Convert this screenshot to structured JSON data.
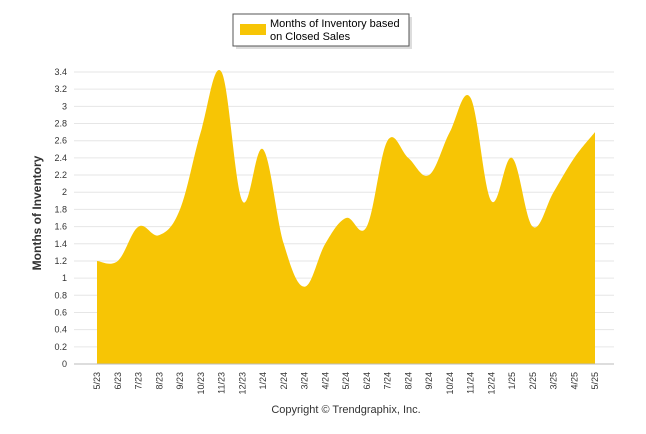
{
  "chart_data": {
    "type": "area",
    "legend": {
      "label_line1": "Months of Inventory based",
      "label_line2": "on Closed Sales",
      "placement": "top-center"
    },
    "ylabel": "Months of Inventory",
    "xlabel": "",
    "ylim": [
      0,
      3.4
    ],
    "yticks": [
      "0",
      "0.2",
      "0.4",
      "0.6",
      "0.8",
      "1",
      "1.2",
      "1.4",
      "1.6",
      "1.8",
      "2",
      "2.2",
      "2.4",
      "2.6",
      "2.8",
      "3",
      "3.2",
      "3.4"
    ],
    "grid": true,
    "categories": [
      "5/23",
      "6/23",
      "7/23",
      "8/23",
      "9/23",
      "10/23",
      "11/23",
      "12/23",
      "1/24",
      "2/24",
      "3/24",
      "4/24",
      "5/24",
      "6/24",
      "7/24",
      "8/24",
      "9/24",
      "10/24",
      "11/24",
      "12/24",
      "1/25",
      "2/25",
      "3/25",
      "4/25",
      "5/25"
    ],
    "series": [
      {
        "name": "Months of Inventory based on Closed Sales",
        "color": "#f7c505",
        "values": [
          1.2,
          1.2,
          1.6,
          1.5,
          1.8,
          2.7,
          3.4,
          1.9,
          2.5,
          1.4,
          0.9,
          1.4,
          1.7,
          1.6,
          2.6,
          2.4,
          2.2,
          2.7,
          3.1,
          1.9,
          2.4,
          1.6,
          2.0,
          2.4,
          2.7
        ]
      }
    ]
  },
  "footer": {
    "copyright": "Copyright © Trendgraphix, Inc."
  }
}
